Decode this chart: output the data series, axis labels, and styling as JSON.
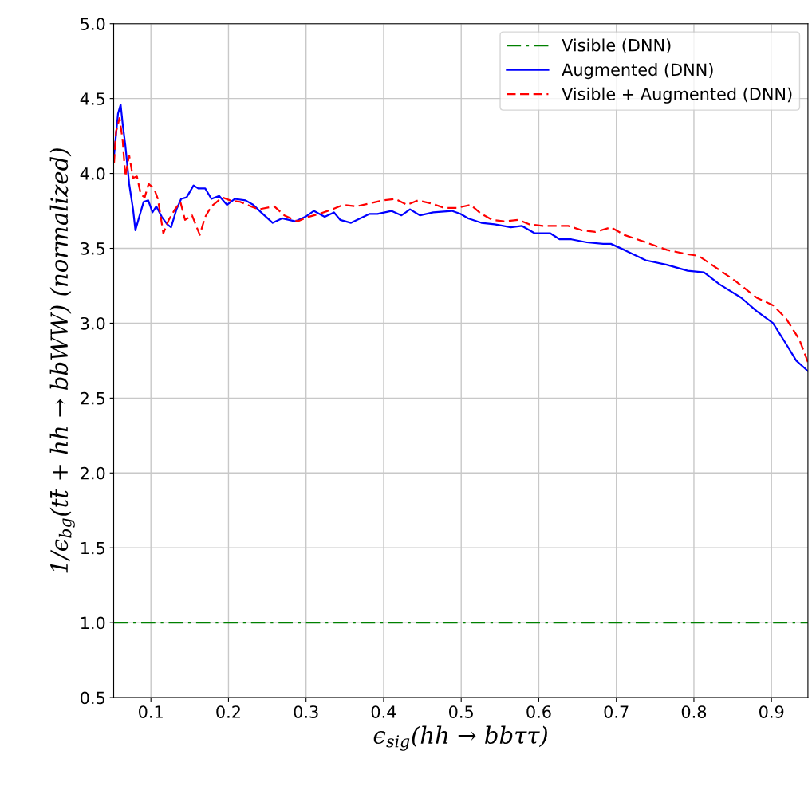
{
  "chart_data": {
    "type": "line",
    "xlabel": "ϵ$_{sig}$(hh → bbττ)",
    "ylabel": "1/ϵ$_{bg}$(tt̄ + hh → bbWW) (normalized)",
    "xlim": [
      0.052,
      0.947
    ],
    "ylim": [
      0.5,
      5.0
    ],
    "xticks": [
      0.1,
      0.2,
      0.3,
      0.4,
      0.5,
      0.6,
      0.7,
      0.8,
      0.9
    ],
    "yticks": [
      {
        "value": 0.5,
        "label": "0.5"
      },
      {
        "value": 1.0,
        "label": "1.0"
      },
      {
        "value": 1.5,
        "label": "1.5"
      },
      {
        "value": 2.0,
        "label": "2.0"
      },
      {
        "value": 2.5,
        "label": "2.5"
      },
      {
        "value": 3.0,
        "label": "3.0"
      },
      {
        "value": 3.5,
        "label": "3.5"
      },
      {
        "value": 4.0,
        "label": "4.0"
      },
      {
        "value": 4.5,
        "label": "4.5"
      },
      {
        "value": 5.0,
        "label": "5.0"
      }
    ],
    "grid": true,
    "legend": "top right",
    "series": [
      {
        "name": "Visible (DNN)",
        "color": "#008000",
        "line_style": "dashdot",
        "x": [
          0.052,
          0.947
        ],
        "values": [
          1.0,
          1.0
        ]
      },
      {
        "name": "Augmented (DNN)",
        "color": "#0000ff",
        "line_style": "solid",
        "x": [
          0.0525,
          0.0576,
          0.061,
          0.0636,
          0.067,
          0.072,
          0.077,
          0.08,
          0.0855,
          0.0906,
          0.0966,
          0.102,
          0.107,
          0.114,
          0.121,
          0.126,
          0.133,
          0.139,
          0.146,
          0.155,
          0.161,
          0.17,
          0.178,
          0.188,
          0.198,
          0.208,
          0.222,
          0.232,
          0.242,
          0.257,
          0.269,
          0.286,
          0.299,
          0.31,
          0.324,
          0.336,
          0.344,
          0.358,
          0.382,
          0.392,
          0.41,
          0.423,
          0.434,
          0.447,
          0.464,
          0.488,
          0.499,
          0.509,
          0.526,
          0.543,
          0.564,
          0.578,
          0.595,
          0.615,
          0.627,
          0.642,
          0.662,
          0.683,
          0.693,
          0.71,
          0.738,
          0.765,
          0.792,
          0.813,
          0.833,
          0.861,
          0.881,
          0.902,
          0.919,
          0.932,
          0.947
        ],
        "values": [
          4.12,
          4.4,
          4.46,
          4.33,
          4.19,
          3.93,
          3.76,
          3.62,
          3.72,
          3.81,
          3.82,
          3.74,
          3.78,
          3.71,
          3.66,
          3.64,
          3.76,
          3.83,
          3.84,
          3.92,
          3.9,
          3.9,
          3.83,
          3.85,
          3.79,
          3.83,
          3.82,
          3.79,
          3.74,
          3.67,
          3.7,
          3.68,
          3.71,
          3.75,
          3.71,
          3.74,
          3.69,
          3.67,
          3.73,
          3.73,
          3.75,
          3.72,
          3.76,
          3.72,
          3.74,
          3.75,
          3.73,
          3.7,
          3.67,
          3.66,
          3.64,
          3.65,
          3.6,
          3.6,
          3.56,
          3.56,
          3.54,
          3.53,
          3.53,
          3.49,
          3.42,
          3.39,
          3.35,
          3.34,
          3.26,
          3.17,
          3.08,
          3.0,
          2.86,
          2.75,
          2.68
        ]
      },
      {
        "name": "Visible + Augmented (DNN)",
        "color": "#ff0000",
        "line_style": "dashed",
        "x": [
          0.0525,
          0.055,
          0.0596,
          0.0636,
          0.067,
          0.072,
          0.077,
          0.082,
          0.087,
          0.092,
          0.097,
          0.104,
          0.109,
          0.116,
          0.123,
          0.131,
          0.138,
          0.144,
          0.153,
          0.163,
          0.17,
          0.178,
          0.192,
          0.202,
          0.215,
          0.229,
          0.239,
          0.259,
          0.272,
          0.289,
          0.303,
          0.317,
          0.334,
          0.348,
          0.365,
          0.382,
          0.399,
          0.415,
          0.43,
          0.444,
          0.461,
          0.478,
          0.495,
          0.512,
          0.526,
          0.54,
          0.555,
          0.574,
          0.588,
          0.605,
          0.626,
          0.638,
          0.656,
          0.673,
          0.693,
          0.71,
          0.738,
          0.765,
          0.792,
          0.806,
          0.826,
          0.854,
          0.881,
          0.902,
          0.919,
          0.936,
          0.947
        ],
        "values": [
          4.07,
          4.28,
          4.37,
          4.22,
          3.98,
          4.12,
          3.97,
          3.98,
          3.86,
          3.84,
          3.93,
          3.9,
          3.83,
          3.6,
          3.69,
          3.76,
          3.81,
          3.69,
          3.72,
          3.59,
          3.71,
          3.78,
          3.84,
          3.82,
          3.81,
          3.78,
          3.76,
          3.78,
          3.72,
          3.68,
          3.71,
          3.73,
          3.76,
          3.79,
          3.78,
          3.8,
          3.82,
          3.83,
          3.79,
          3.82,
          3.8,
          3.77,
          3.77,
          3.79,
          3.73,
          3.69,
          3.68,
          3.69,
          3.66,
          3.65,
          3.65,
          3.65,
          3.62,
          3.61,
          3.64,
          3.59,
          3.54,
          3.49,
          3.46,
          3.45,
          3.38,
          3.28,
          3.17,
          3.12,
          3.03,
          2.89,
          2.74
        ]
      }
    ]
  }
}
